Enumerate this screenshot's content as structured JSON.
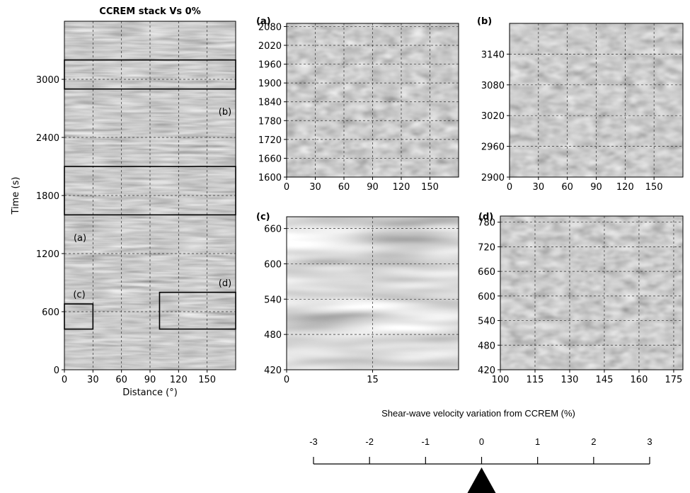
{
  "chart_data": [
    {
      "type": "image",
      "title": "CCREM stack Vs 0%",
      "xlabel": "Distance (°)",
      "ylabel": "Time (s)",
      "xlim": [
        0,
        180
      ],
      "ylim": [
        0,
        3600
      ],
      "xticks": [
        0,
        30,
        60,
        90,
        120,
        150
      ],
      "yticks": [
        0,
        600,
        1200,
        1800,
        2400,
        3000
      ],
      "grid": true,
      "boxes": [
        {
          "label": "(a)",
          "xlim": [
            0,
            180
          ],
          "ylim": [
            1600,
            2100
          ]
        },
        {
          "label": "(b)",
          "xlim": [
            0,
            180
          ],
          "ylim": [
            2900,
            3200
          ]
        },
        {
          "label": "(c)",
          "xlim": [
            0,
            30
          ],
          "ylim": [
            420,
            680
          ]
        },
        {
          "label": "(d)",
          "xlim": [
            100,
            180
          ],
          "ylim": [
            420,
            800
          ]
        }
      ]
    },
    {
      "type": "image",
      "title": "(a)",
      "xlim": [
        0,
        180
      ],
      "ylim": [
        1600,
        2090
      ],
      "xticks": [
        0,
        30,
        60,
        90,
        120,
        150
      ],
      "yticks": [
        1600,
        1660,
        1720,
        1780,
        1840,
        1900,
        1960,
        2020,
        2080
      ],
      "grid": true
    },
    {
      "type": "image",
      "title": "(b)",
      "xlim": [
        0,
        180
      ],
      "ylim": [
        2900,
        3200
      ],
      "xticks": [
        0,
        30,
        60,
        90,
        120,
        150
      ],
      "yticks": [
        2900,
        2960,
        3020,
        3080,
        3140
      ],
      "grid": true
    },
    {
      "type": "image",
      "title": "(c)",
      "xlim": [
        0,
        30
      ],
      "ylim": [
        420,
        680
      ],
      "xticks": [
        0,
        15
      ],
      "yticks": [
        420,
        480,
        540,
        600,
        660
      ],
      "grid": true
    },
    {
      "type": "image",
      "title": "(d)",
      "xlim": [
        100,
        179
      ],
      "ylim": [
        420,
        795
      ],
      "xticks": [
        100,
        115,
        130,
        145,
        160,
        175
      ],
      "yticks": [
        420,
        480,
        540,
        600,
        660,
        720,
        780
      ],
      "grid": true
    }
  ],
  "scale": {
    "title": "Shear-wave velocity variation from CCREM (%)",
    "ticks": [
      -3,
      -2,
      -1,
      0,
      1,
      2,
      3
    ],
    "value": 0
  }
}
